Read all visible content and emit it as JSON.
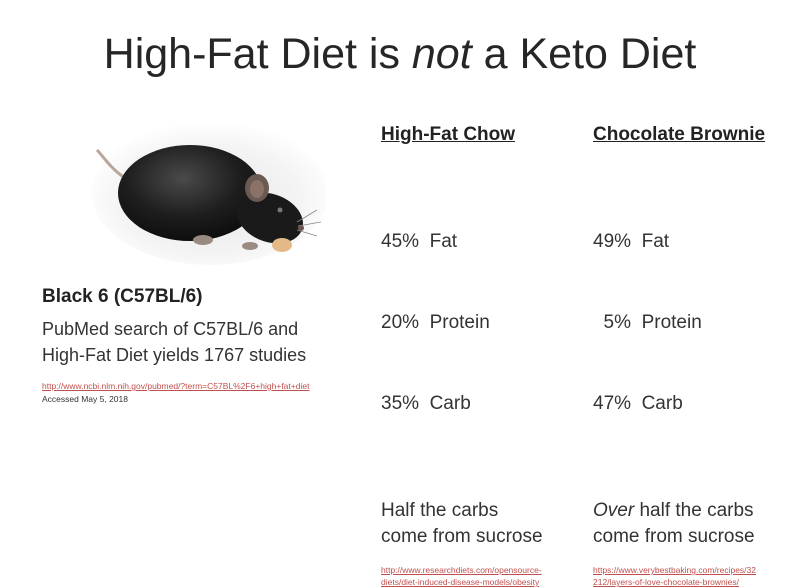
{
  "slide": {
    "title_part1": "High-Fat Diet is ",
    "title_emphasis": "not",
    "title_part2": " a Keto Diet"
  },
  "left": {
    "heading": "Black 6 (C57BL/6)",
    "line1": "PubMed search of C57BL/6 and",
    "line2": "High-Fat Diet yields 1767 studies",
    "link": "http://www.ncbi.nlm.nih.gov/pubmed/?term=C57BL%2F6+high+fat+diet",
    "accessed": "Accessed May 5, 2018"
  },
  "chow": {
    "heading": "High-Fat Chow",
    "macros": [
      "45%  Fat",
      "20%  Protein",
      "35%  Carb"
    ],
    "note_line1": "Half the carbs",
    "note_line2": "come from sucrose",
    "link_line1": "http://www.researchdiets.com/opensource-",
    "link_line2": "diets/diet-induced-disease-models/obesity"
  },
  "brownie": {
    "heading": "Chocolate Brownie",
    "macros": [
      "49%  Fat",
      "  5%  Protein",
      "47%  Carb"
    ],
    "note_em": "Over",
    "note_rest": " half the carbs",
    "note_line2": "come from sucrose",
    "link_line1": "https://www.verybestbaking.com/recipes/32",
    "link_line2": "212/layers-of-love-chocolate-brownies/"
  },
  "colors": {
    "link": "#c0504d",
    "text": "#2b2b2b"
  },
  "image": {
    "name": "black-mouse-photo"
  }
}
